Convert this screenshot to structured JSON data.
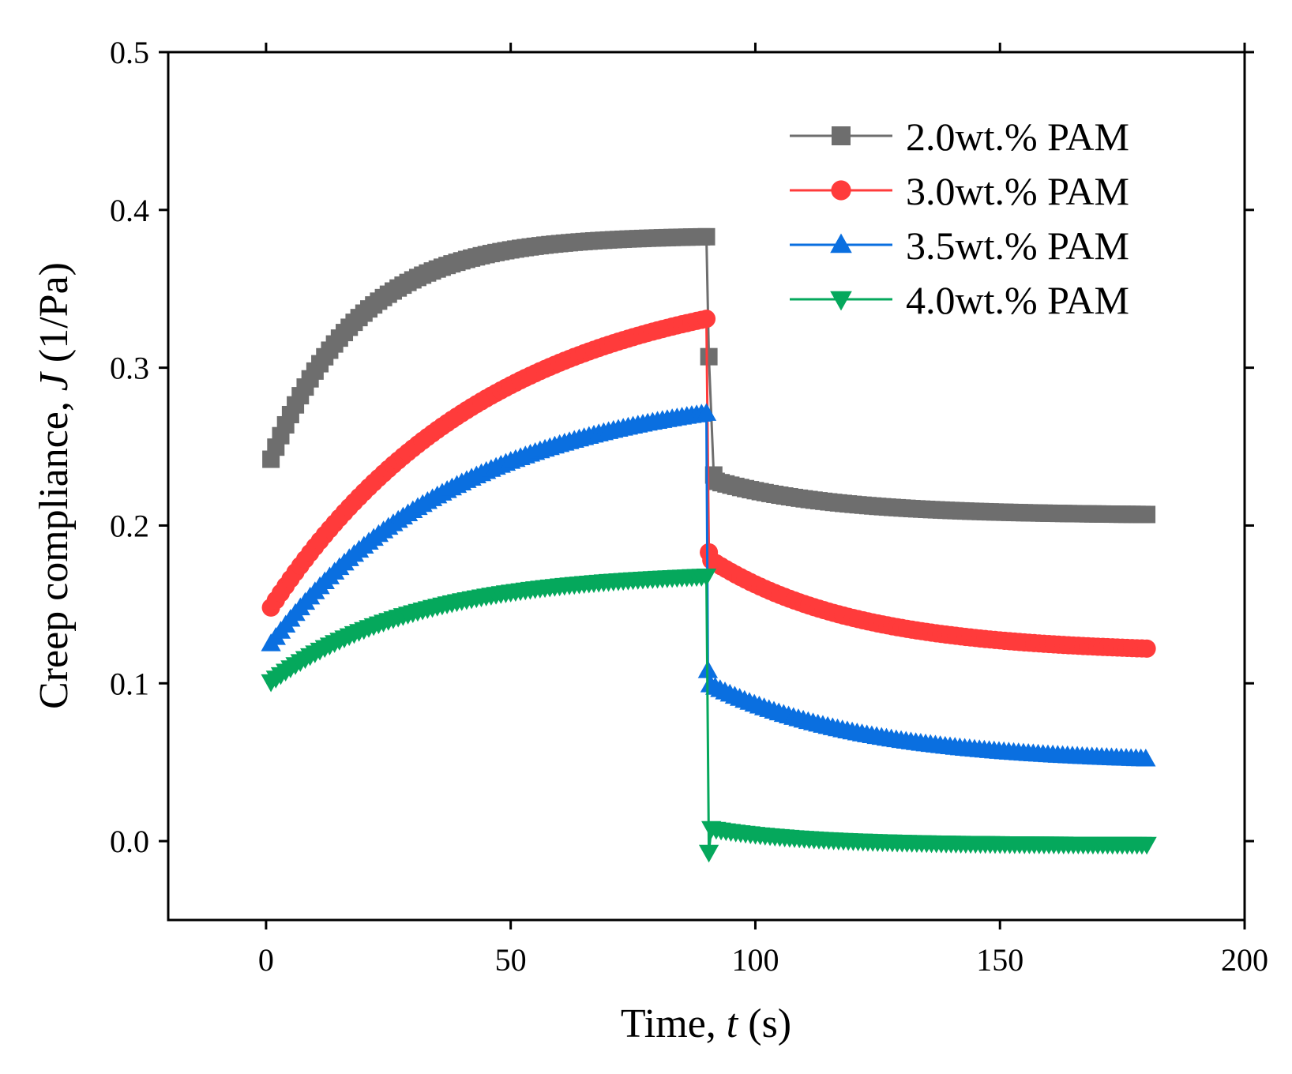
{
  "chart_data": {
    "type": "line",
    "title": "",
    "xlabel": {
      "prefix": "Time, ",
      "italic": "t",
      "suffix": " (s)"
    },
    "ylabel": {
      "prefix": "Creep compliance, ",
      "italic": "J",
      "suffix": " (1/Pa)"
    },
    "xlim": [
      -20,
      200
    ],
    "ylim": [
      -0.05,
      0.5
    ],
    "xticks": [
      0,
      50,
      100,
      150,
      200
    ],
    "xtick_labels": [
      "0",
      "50",
      "100",
      "150",
      "200"
    ],
    "yticks": [
      0.0,
      0.1,
      0.2,
      0.3,
      0.4,
      0.5
    ],
    "ytick_labels": [
      "0.0",
      "0.1",
      "0.2",
      "0.3",
      "0.4",
      "0.5"
    ],
    "legend_position": "top-right",
    "creep_end": 90,
    "t_end": 180,
    "series": [
      {
        "name": "2.0wt.% PAM",
        "label": "2.0wt.% PAM",
        "color": "#6e6e6e",
        "marker": "square",
        "creep_start": 0.242,
        "creep_peak": 0.383,
        "creep_tau": 18,
        "recovery": [
          [
            90.5,
            0.307
          ],
          [
            91.5,
            0.232
          ]
        ],
        "recovery_start": 0.228,
        "recovery_end": 0.207,
        "recovery_tau": 25
      },
      {
        "name": "3.0wt.% PAM",
        "label": "3.0wt.% PAM",
        "color": "#ff3b3b",
        "marker": "circle",
        "creep_start": 0.148,
        "creep_peak": 0.331,
        "creep_tau": 45,
        "recovery": [
          [
            90.5,
            0.183
          ]
        ],
        "recovery_start": 0.178,
        "recovery_end": 0.122,
        "recovery_tau": 30
      },
      {
        "name": "3.5wt.% PAM",
        "label": "3.5wt.% PAM",
        "color": "#0a6fe0",
        "marker": "triangle-up",
        "creep_start": 0.125,
        "creep_peak": 0.271,
        "creep_tau": 40,
        "recovery": [
          [
            90.3,
            0.108
          ]
        ],
        "recovery_start": 0.099,
        "recovery_end": 0.052,
        "recovery_tau": 32
      },
      {
        "name": "4.0wt.% PAM",
        "label": "4.0wt.% PAM",
        "color": "#05a85c",
        "marker": "triangle-down",
        "creep_start": 0.101,
        "creep_peak": 0.168,
        "creep_tau": 30,
        "recovery": [
          [
            90.5,
            -0.007
          ]
        ],
        "recovery_start": 0.008,
        "recovery_end": -0.002,
        "recovery_tau": 20
      }
    ]
  }
}
